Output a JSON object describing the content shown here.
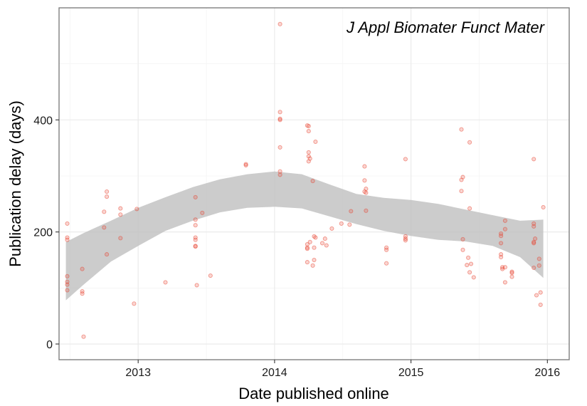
{
  "chart_data": {
    "type": "scatter",
    "title": "",
    "annotation": "J Appl Biomater Funct Mater",
    "xlabel": "Date published online",
    "ylabel": "Publication delay (days)",
    "xlim": [
      2012.42,
      2016.16
    ],
    "ylim": [
      -28,
      600
    ],
    "x_ticks": [
      2013,
      2014,
      2015,
      2016
    ],
    "x_tick_labels": [
      "2013",
      "2014",
      "2015",
      "2016"
    ],
    "y_ticks": [
      0,
      200,
      400
    ],
    "y_tick_labels": [
      "0",
      "200",
      "400"
    ],
    "grid": true,
    "point_color": "#e8412e",
    "band_color": "#bfbfbf",
    "smooth_band": {
      "x": [
        2012.47,
        2012.6,
        2012.8,
        2013.0,
        2013.2,
        2013.4,
        2013.6,
        2013.8,
        2014.0,
        2014.2,
        2014.4,
        2014.6,
        2014.8,
        2015.0,
        2015.2,
        2015.4,
        2015.6,
        2015.8,
        2015.97
      ],
      "lower": [
        78,
        106,
        147,
        175,
        202,
        220,
        235,
        243,
        245,
        242,
        228,
        214,
        202,
        193,
        186,
        183,
        175,
        155,
        118
      ],
      "upper": [
        182,
        198,
        220,
        243,
        262,
        280,
        294,
        303,
        308,
        303,
        285,
        268,
        261,
        257,
        250,
        240,
        230,
        220,
        222
      ]
    },
    "points": [
      {
        "x": 2012.48,
        "y": 215
      },
      {
        "x": 2012.48,
        "y": 190
      },
      {
        "x": 2012.48,
        "y": 186
      },
      {
        "x": 2012.48,
        "y": 121
      },
      {
        "x": 2012.48,
        "y": 111
      },
      {
        "x": 2012.48,
        "y": 106
      },
      {
        "x": 2012.48,
        "y": 96
      },
      {
        "x": 2012.59,
        "y": 134
      },
      {
        "x": 2012.59,
        "y": 94
      },
      {
        "x": 2012.59,
        "y": 90
      },
      {
        "x": 2012.6,
        "y": 13
      },
      {
        "x": 2012.75,
        "y": 236
      },
      {
        "x": 2012.75,
        "y": 208
      },
      {
        "x": 2012.77,
        "y": 272
      },
      {
        "x": 2012.77,
        "y": 263
      },
      {
        "x": 2012.77,
        "y": 160
      },
      {
        "x": 2012.87,
        "y": 242
      },
      {
        "x": 2012.87,
        "y": 231
      },
      {
        "x": 2012.87,
        "y": 189
      },
      {
        "x": 2012.97,
        "y": 72
      },
      {
        "x": 2012.99,
        "y": 241
      },
      {
        "x": 2013.2,
        "y": 110
      },
      {
        "x": 2013.42,
        "y": 262
      },
      {
        "x": 2013.42,
        "y": 222
      },
      {
        "x": 2013.42,
        "y": 212
      },
      {
        "x": 2013.42,
        "y": 190
      },
      {
        "x": 2013.42,
        "y": 186
      },
      {
        "x": 2013.42,
        "y": 175
      },
      {
        "x": 2013.42,
        "y": 174
      },
      {
        "x": 2013.43,
        "y": 105
      },
      {
        "x": 2013.47,
        "y": 234
      },
      {
        "x": 2013.53,
        "y": 122
      },
      {
        "x": 2013.79,
        "y": 321
      },
      {
        "x": 2013.79,
        "y": 319
      },
      {
        "x": 2014.04,
        "y": 571
      },
      {
        "x": 2014.04,
        "y": 414
      },
      {
        "x": 2014.04,
        "y": 402
      },
      {
        "x": 2014.04,
        "y": 400
      },
      {
        "x": 2014.04,
        "y": 351
      },
      {
        "x": 2014.04,
        "y": 308
      },
      {
        "x": 2014.04,
        "y": 302
      },
      {
        "x": 2014.24,
        "y": 390
      },
      {
        "x": 2014.25,
        "y": 389
      },
      {
        "x": 2014.25,
        "y": 380
      },
      {
        "x": 2014.25,
        "y": 342
      },
      {
        "x": 2014.25,
        "y": 335
      },
      {
        "x": 2014.25,
        "y": 326
      },
      {
        "x": 2014.26,
        "y": 331
      },
      {
        "x": 2014.26,
        "y": 182
      },
      {
        "x": 2014.24,
        "y": 178
      },
      {
        "x": 2014.24,
        "y": 172
      },
      {
        "x": 2014.24,
        "y": 170
      },
      {
        "x": 2014.24,
        "y": 146
      },
      {
        "x": 2014.28,
        "y": 291
      },
      {
        "x": 2014.29,
        "y": 192
      },
      {
        "x": 2014.3,
        "y": 190
      },
      {
        "x": 2014.29,
        "y": 172
      },
      {
        "x": 2014.29,
        "y": 150
      },
      {
        "x": 2014.28,
        "y": 140
      },
      {
        "x": 2014.3,
        "y": 361
      },
      {
        "x": 2014.35,
        "y": 180
      },
      {
        "x": 2014.37,
        "y": 188
      },
      {
        "x": 2014.38,
        "y": 176
      },
      {
        "x": 2014.42,
        "y": 206
      },
      {
        "x": 2014.49,
        "y": 215
      },
      {
        "x": 2014.55,
        "y": 213
      },
      {
        "x": 2014.56,
        "y": 237
      },
      {
        "x": 2014.66,
        "y": 317
      },
      {
        "x": 2014.66,
        "y": 292
      },
      {
        "x": 2014.66,
        "y": 272
      },
      {
        "x": 2014.67,
        "y": 277
      },
      {
        "x": 2014.67,
        "y": 270
      },
      {
        "x": 2014.67,
        "y": 238
      },
      {
        "x": 2014.82,
        "y": 172
      },
      {
        "x": 2014.82,
        "y": 168
      },
      {
        "x": 2014.82,
        "y": 144
      },
      {
        "x": 2014.96,
        "y": 330
      },
      {
        "x": 2014.96,
        "y": 192
      },
      {
        "x": 2014.96,
        "y": 188
      },
      {
        "x": 2014.96,
        "y": 185
      },
      {
        "x": 2015.37,
        "y": 383
      },
      {
        "x": 2015.37,
        "y": 293
      },
      {
        "x": 2015.37,
        "y": 273
      },
      {
        "x": 2015.38,
        "y": 298
      },
      {
        "x": 2015.38,
        "y": 187
      },
      {
        "x": 2015.38,
        "y": 168
      },
      {
        "x": 2015.41,
        "y": 141
      },
      {
        "x": 2015.42,
        "y": 154
      },
      {
        "x": 2015.43,
        "y": 360
      },
      {
        "x": 2015.43,
        "y": 242
      },
      {
        "x": 2015.43,
        "y": 128
      },
      {
        "x": 2015.44,
        "y": 143
      },
      {
        "x": 2015.46,
        "y": 119
      },
      {
        "x": 2015.66,
        "y": 197
      },
      {
        "x": 2015.66,
        "y": 193
      },
      {
        "x": 2015.66,
        "y": 180
      },
      {
        "x": 2015.66,
        "y": 160
      },
      {
        "x": 2015.66,
        "y": 155
      },
      {
        "x": 2015.67,
        "y": 137
      },
      {
        "x": 2015.67,
        "y": 134
      },
      {
        "x": 2015.69,
        "y": 220
      },
      {
        "x": 2015.69,
        "y": 205
      },
      {
        "x": 2015.69,
        "y": 137
      },
      {
        "x": 2015.69,
        "y": 110
      },
      {
        "x": 2015.74,
        "y": 129
      },
      {
        "x": 2015.74,
        "y": 127
      },
      {
        "x": 2015.74,
        "y": 120
      },
      {
        "x": 2015.9,
        "y": 330
      },
      {
        "x": 2015.9,
        "y": 215
      },
      {
        "x": 2015.9,
        "y": 210
      },
      {
        "x": 2015.9,
        "y": 182
      },
      {
        "x": 2015.9,
        "y": 180
      },
      {
        "x": 2015.9,
        "y": 136
      },
      {
        "x": 2015.91,
        "y": 188
      },
      {
        "x": 2015.92,
        "y": 87
      },
      {
        "x": 2015.94,
        "y": 152
      },
      {
        "x": 2015.94,
        "y": 140
      },
      {
        "x": 2015.95,
        "y": 92
      },
      {
        "x": 2015.95,
        "y": 70
      },
      {
        "x": 2015.97,
        "y": 244
      }
    ]
  }
}
